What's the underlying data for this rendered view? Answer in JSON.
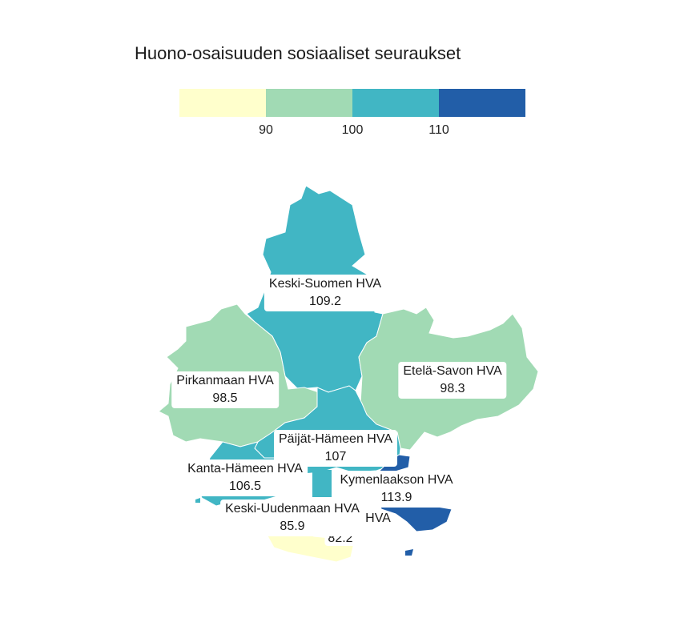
{
  "title": "Huono-osaisuuden sosiaaliset seuraukset",
  "legend": {
    "colors": [
      "#ffffcc",
      "#a1dab4",
      "#41b6c4",
      "#225ea8"
    ],
    "ticks": [
      "90",
      "100",
      "110"
    ]
  },
  "regions": [
    {
      "name": "Keski-Suomen HVA",
      "value": "109.2",
      "color": "#41b6c4"
    },
    {
      "name": "Pirkanmaan HVA",
      "value": "98.5",
      "color": "#a1dab4"
    },
    {
      "name": "Etelä-Savon HVA",
      "value": "98.3",
      "color": "#a1dab4"
    },
    {
      "name": "Päijät-Hämeen HVA",
      "value": "107",
      "color": "#41b6c4"
    },
    {
      "name": "Kanta-Hämeen HVA",
      "value": "106.5",
      "color": "#41b6c4"
    },
    {
      "name": "Kymenlaakson HVA",
      "value": "113.9",
      "color": "#225ea8"
    },
    {
      "name": "Keski-Uudenmaan HVA",
      "value": "85.9",
      "color": "#ffffcc"
    },
    {
      "name": "HVA",
      "value": "82.2",
      "color": "#ffffcc"
    }
  ]
}
